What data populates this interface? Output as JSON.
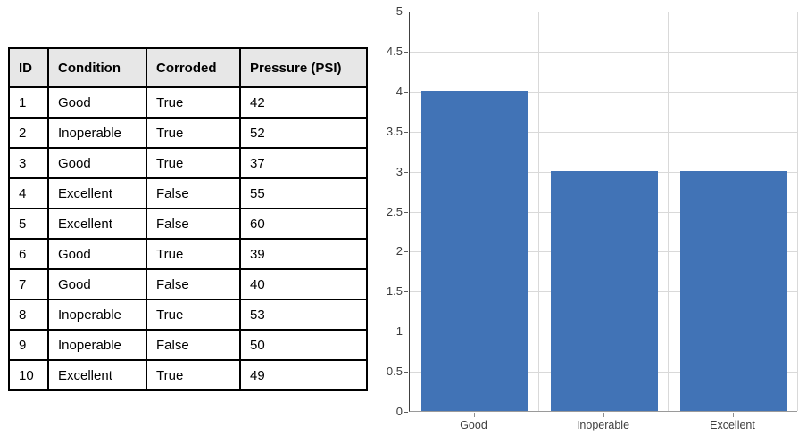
{
  "table": {
    "headers": [
      "ID",
      "Condition",
      "Corroded",
      "Pressure (PSI)"
    ],
    "rows": [
      [
        "1",
        "Good",
        "True",
        "42"
      ],
      [
        "2",
        "Inoperable",
        "True",
        "52"
      ],
      [
        "3",
        "Good",
        "True",
        "37"
      ],
      [
        "4",
        "Excellent",
        "False",
        "55"
      ],
      [
        "5",
        "Excellent",
        "False",
        "60"
      ],
      [
        "6",
        "Good",
        "True",
        "39"
      ],
      [
        "7",
        "Good",
        "False",
        "40"
      ],
      [
        "8",
        "Inoperable",
        "True",
        "53"
      ],
      [
        "9",
        "Inoperable",
        "False",
        "50"
      ],
      [
        "10",
        "Excellent",
        "True",
        "49"
      ]
    ],
    "header_bg": "#e7e7e7",
    "border_color": "#000000"
  },
  "chart_data": {
    "type": "bar",
    "categories": [
      "Good",
      "Inoperable",
      "Excellent"
    ],
    "values": [
      4,
      3,
      3
    ],
    "title": "",
    "xlabel": "",
    "ylabel": "",
    "ylim": [
      0,
      5
    ],
    "ytick_step": 0.5,
    "bar_color": "#4173b6",
    "gridline_color": "#d9d9d9",
    "grid": true,
    "legend": "none"
  }
}
